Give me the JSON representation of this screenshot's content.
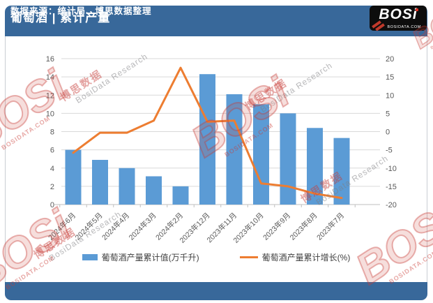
{
  "header": {
    "title": "葡萄酒 | 累计产量",
    "logo_text": "BOSi",
    "logo_sub": "BOSIDATA.COM"
  },
  "footer": {
    "source_text": "数据来源：统计局、博思数据整理"
  },
  "watermark": {
    "cn": "博思数据",
    "en": "BosiData Research",
    "logo": "BOSi",
    "logo_sub": "BOSIDATA.COM"
  },
  "chart_data": {
    "type": "bar",
    "subtype": "bar-line-combo",
    "categories": [
      "2024年6月",
      "2024年5月",
      "2024年4月",
      "2024年3月",
      "2024年2月",
      "2023年12月",
      "2023年11月",
      "2023年10月",
      "2023年9月",
      "2023年8月",
      "2023年7月"
    ],
    "series": [
      {
        "name": "葡萄酒产量累计值(万千升)",
        "type": "bar",
        "axis": "left",
        "color": "#5B9BD5",
        "values": [
          6.0,
          4.9,
          4.0,
          3.1,
          2.0,
          14.3,
          12.1,
          11.0,
          10.0,
          8.4,
          7.3
        ]
      },
      {
        "name": "葡萄酒产量累计增长(%)",
        "type": "line",
        "axis": "right",
        "color": "#ED7D31",
        "values": [
          -5.8,
          -0.3,
          -0.3,
          3.0,
          17.5,
          2.7,
          3.0,
          -14.2,
          -15.0,
          -17.0,
          -18.2
        ]
      }
    ],
    "left_axis": {
      "min": 0,
      "max": 16,
      "step": 2
    },
    "right_axis": {
      "min": -20,
      "max": 20,
      "step": 5
    },
    "grid": true,
    "legend_position": "bottom",
    "colors": {
      "grid": "#d9d9d9",
      "axis": "#bfbfbf",
      "tick_text": "#595959",
      "header_bg": "#38689a",
      "bar": "#5B9BD5",
      "line": "#ED7D31"
    }
  }
}
